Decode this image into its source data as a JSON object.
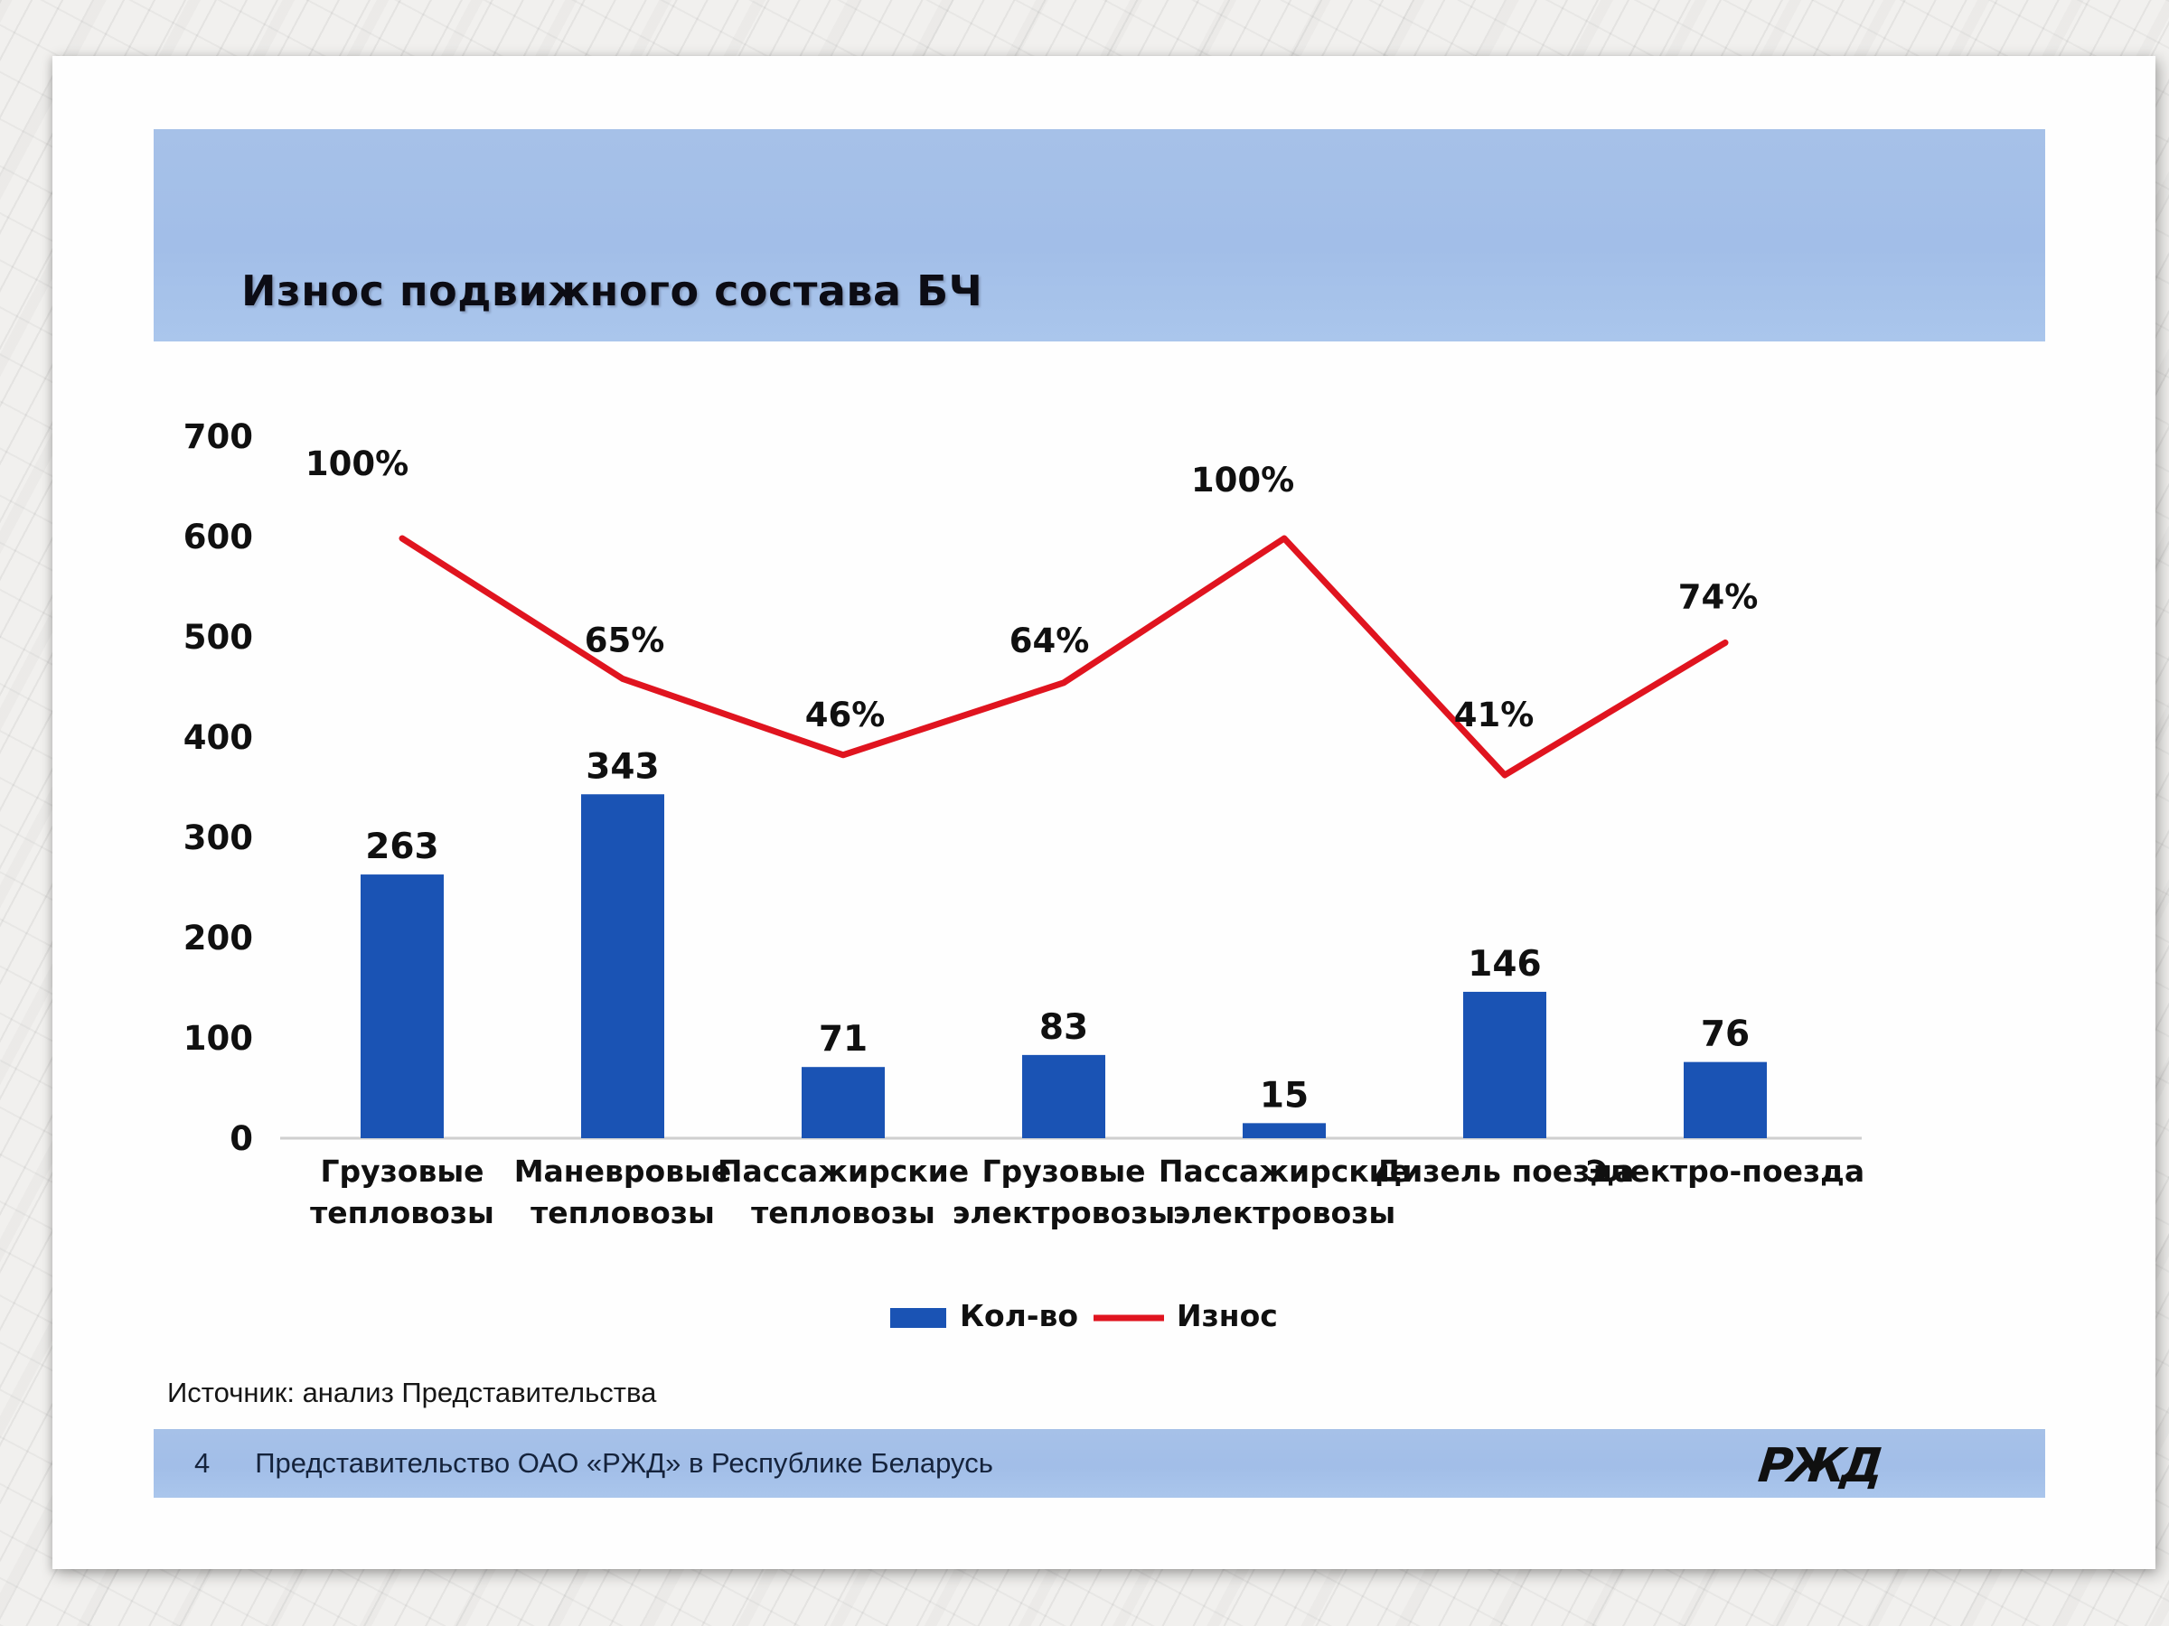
{
  "slide": {
    "title": "Износ подвижного состава БЧ",
    "source": "Источник: анализ Представительства",
    "footer": {
      "page_number": "4",
      "text": "Представительство ОАО «РЖД» в Республике Беларусь",
      "logo_text": "РЖД"
    }
  },
  "colors": {
    "bar": "#1a53b4",
    "line": "#e0141f",
    "header_band": "#a4c0e8",
    "footer_band": "#a8c3e9",
    "logo_red": "#d6121b",
    "axis_line": "#cfcfcf"
  },
  "chart_data": {
    "type": "bar+line",
    "title": "Износ подвижного состава БЧ",
    "categories": [
      [
        "Грузовые",
        "тепловозы"
      ],
      [
        "Маневровые",
        "тепловозы"
      ],
      [
        "Пассажирские",
        "тепловозы"
      ],
      [
        "Грузовые",
        "электровозы"
      ],
      [
        "Пассажирские",
        "электровозы"
      ],
      [
        "Дизель поезда"
      ],
      [
        "Электро-поезда"
      ]
    ],
    "series": [
      {
        "name": "Кол-во",
        "type": "bar",
        "values": [
          263,
          343,
          71,
          83,
          15,
          146,
          76
        ]
      },
      {
        "name": "Износ",
        "type": "line",
        "values": [
          100,
          65,
          46,
          64,
          100,
          41,
          74
        ],
        "unit": "%"
      }
    ],
    "xlabel": "",
    "ylabel": "",
    "y_ticks": [
      0,
      100,
      200,
      300,
      400,
      500,
      600,
      700
    ],
    "ylim": [
      0,
      700
    ],
    "grid": false,
    "legend": [
      "Кол-во",
      "Износ"
    ],
    "legend_position": "bottom"
  }
}
